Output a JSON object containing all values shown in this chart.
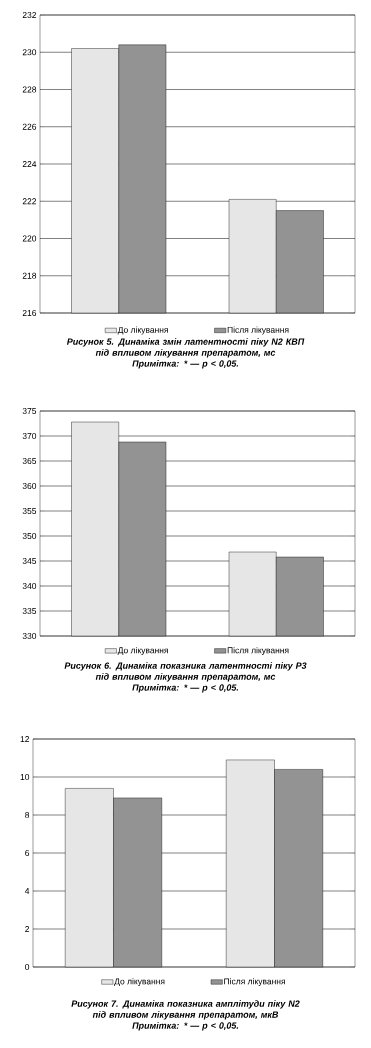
{
  "chart_data": [
    {
      "type": "bar",
      "title": "Рисунок 5. Динаміка змін латентності піку N2 КВП",
      "subtitle": "під впливом лікування препаратом, мс",
      "annotations": [
        "Примітка: * — p < 0,05."
      ],
      "categories": [
        null,
        null
      ],
      "series": [
        {
          "name": "До лікування",
          "color": "#e6e6e6",
          "values": [
            230.2,
            222.1
          ]
        },
        {
          "name": "Після лікування",
          "color": "#939393",
          "values": [
            230.4,
            221.5
          ]
        }
      ],
      "ylim": [
        216,
        232
      ],
      "yticks": [
        216,
        218,
        220,
        222,
        224,
        226,
        228,
        230,
        232
      ],
      "grid": "y",
      "legend": "bottom"
    },
    {
      "type": "bar",
      "title": "Рисунок 6. Динаміка показника латентності піку Р3",
      "subtitle": "під впливом лікування препаратом, мс",
      "annotations": [
        "Примітка: * — p < 0,05."
      ],
      "categories": [
        null,
        null
      ],
      "series": [
        {
          "name": "До лікування",
          "color": "#e6e6e6",
          "values": [
            372.8,
            346.8
          ]
        },
        {
          "name": "Після лікування",
          "color": "#939393",
          "values": [
            368.8,
            345.8
          ]
        }
      ],
      "ylim": [
        330,
        375
      ],
      "yticks": [
        330,
        335,
        340,
        345,
        350,
        355,
        360,
        365,
        370,
        375
      ],
      "grid": "y",
      "legend": "bottom"
    },
    {
      "type": "bar",
      "title": "Рисунок 7. Динаміка показника амплітуди піку N2",
      "subtitle": "під впливом лікування препаратом, мкВ",
      "annotations": [
        "Примітка: * — p < 0,05."
      ],
      "categories": [
        null,
        null
      ],
      "series": [
        {
          "name": "До лікування",
          "color": "#e6e6e6",
          "values": [
            9.4,
            10.9
          ]
        },
        {
          "name": "Після лікування",
          "color": "#939393",
          "values": [
            8.9,
            10.4
          ]
        }
      ],
      "ylim": [
        0,
        12
      ],
      "yticks": [
        0,
        2,
        4,
        6,
        8,
        10,
        12
      ],
      "grid": "y",
      "legend": "bottom"
    }
  ]
}
